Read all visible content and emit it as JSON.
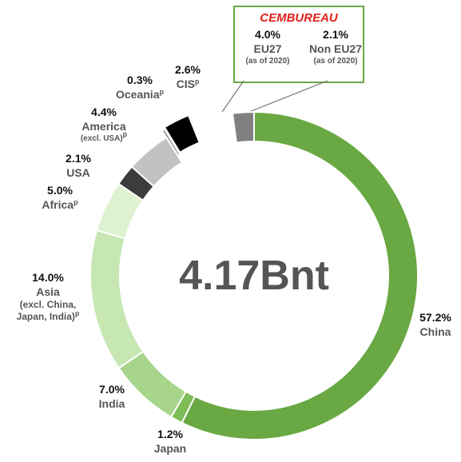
{
  "chart_data": {
    "type": "pie",
    "center_label": "4.17Bnt",
    "callout_title": "CEMBUREAU",
    "categories": [
      "China",
      "Japan",
      "India",
      "Asia",
      "Africa",
      "USA",
      "America",
      "Oceania",
      "CIS",
      "EU27",
      "Non EU27"
    ],
    "values": [
      57.2,
      1.2,
      7.0,
      14.0,
      5.0,
      2.1,
      4.4,
      0.3,
      2.6,
      4.0,
      2.1
    ],
    "value_labels": [
      "57.2%",
      "1.2%",
      "7.0%",
      "14.0%",
      "5.0%",
      "2.1%",
      "4.4%",
      "0.3%",
      "2.6%",
      "4.0%",
      "2.1%"
    ],
    "notes": [
      null,
      null,
      null,
      [
        "(excl. China,",
        "Japan, India)"
      ],
      null,
      null,
      [
        "(excl. USA)"
      ],
      null,
      null,
      [
        "(as of 2020)"
      ],
      [
        "(as of 2020)"
      ]
    ],
    "superscripts": [
      null,
      null,
      null,
      "p",
      "p",
      null,
      "p",
      "p",
      "p",
      null,
      null
    ],
    "colors": [
      "#69a842",
      "#7fbd58",
      "#a6d58b",
      "#c6e7b2",
      "#def2d1",
      "#3c3c3c",
      "#c2c2c2",
      "#9a9a9a",
      "#000000",
      "#ffffff",
      "#7f7f7f"
    ]
  }
}
